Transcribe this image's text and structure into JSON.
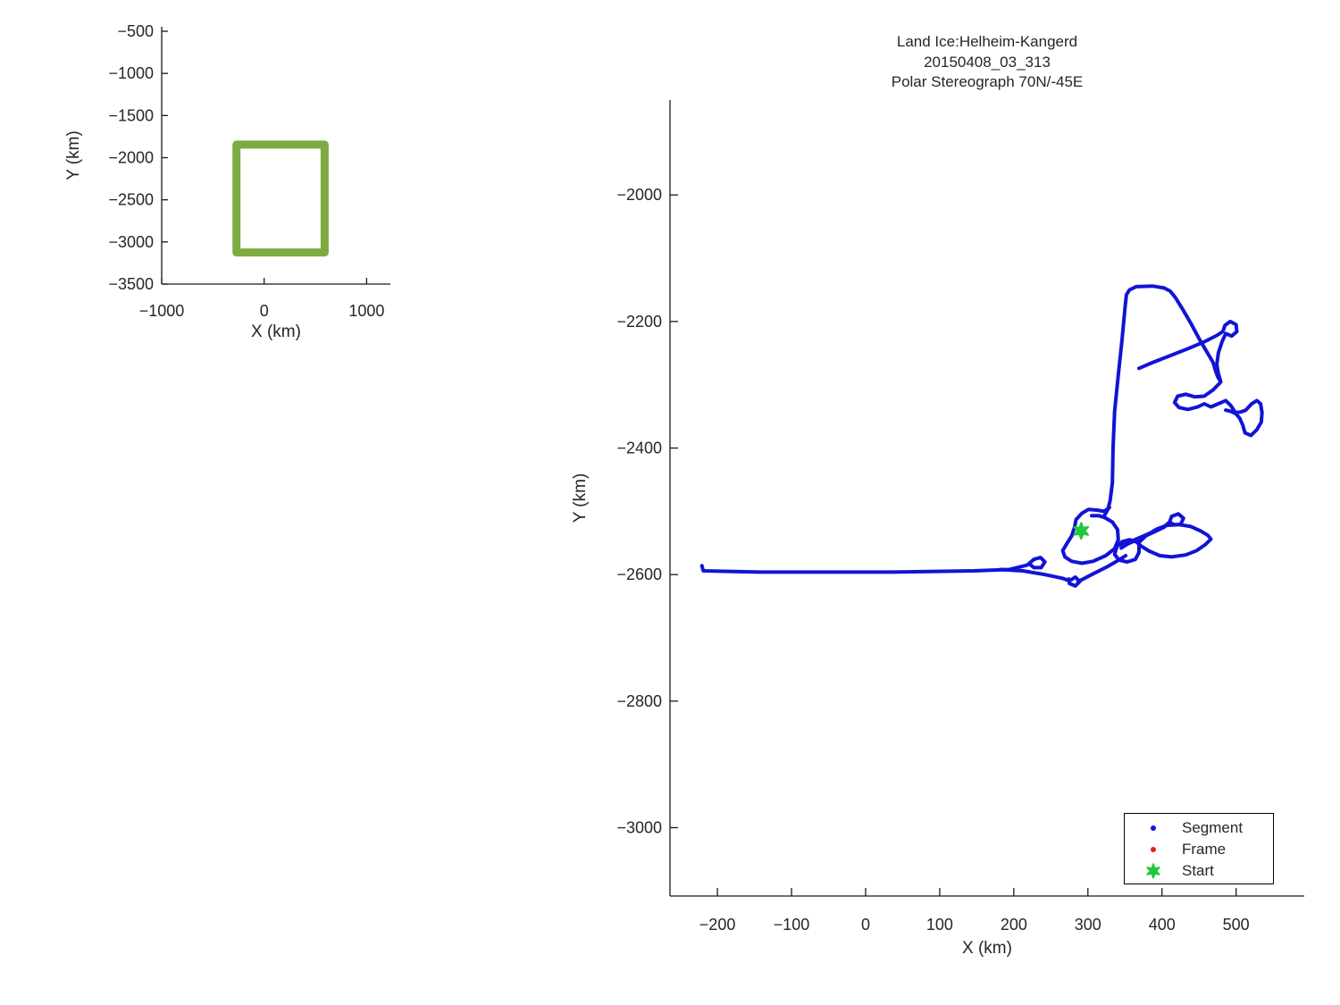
{
  "chart_data": [
    {
      "id": "overview-inset",
      "type": "line",
      "title": "",
      "xlabel": "X (km)",
      "ylabel": "Y (km)",
      "xlim": [
        -1000,
        1232
      ],
      "ylim": [
        -3500,
        -447
      ],
      "grid": false,
      "x_ticks": [
        {
          "v": -1000,
          "label": "−1000"
        },
        {
          "v": 0,
          "label": "0"
        },
        {
          "v": 1000,
          "label": "1000"
        }
      ],
      "y_ticks": [
        {
          "v": -500,
          "label": "−500"
        },
        {
          "v": -1000,
          "label": "−1000"
        },
        {
          "v": -1500,
          "label": "−1500"
        },
        {
          "v": -2000,
          "label": "−2000"
        },
        {
          "v": -2500,
          "label": "−2500"
        },
        {
          "v": -3000,
          "label": "−3000"
        },
        {
          "v": -3500,
          "label": "−3500"
        }
      ],
      "series": [
        {
          "name": "coverage-outline",
          "color": "#7dab40",
          "line_width": 9,
          "closed": true,
          "points": [
            [
              -270,
              -1845
            ],
            [
              590,
              -1845
            ],
            [
              590,
              -3125
            ],
            [
              -270,
              -3125
            ]
          ]
        }
      ]
    },
    {
      "id": "flight-track",
      "type": "line",
      "title_lines": [
        "Land Ice:Helheim-Kangerd",
        "20150408_03_313",
        "Polar Stereograph 70N/-45E"
      ],
      "xlabel": "X (km)",
      "ylabel": "Y (km)",
      "xlim": [
        -264,
        592
      ],
      "ylim": [
        -3108,
        -1850
      ],
      "grid": false,
      "x_ticks": [
        {
          "v": -200,
          "label": "−200"
        },
        {
          "v": -100,
          "label": "−100"
        },
        {
          "v": 0,
          "label": "0"
        },
        {
          "v": 100,
          "label": "100"
        },
        {
          "v": 200,
          "label": "200"
        },
        {
          "v": 300,
          "label": "300"
        },
        {
          "v": 400,
          "label": "400"
        },
        {
          "v": 500,
          "label": "500"
        }
      ],
      "y_ticks": [
        {
          "v": -2000,
          "label": "−2000"
        },
        {
          "v": -2200,
          "label": "−2200"
        },
        {
          "v": -2400,
          "label": "−2400"
        },
        {
          "v": -2600,
          "label": "−2600"
        },
        {
          "v": -2800,
          "label": "−2800"
        },
        {
          "v": -3000,
          "label": "−3000"
        }
      ],
      "legend": {
        "position": "southeast",
        "items": [
          "Segment",
          "Frame",
          "Start"
        ]
      },
      "series": [
        {
          "name": "Segment",
          "color": "#1213d6",
          "marker": "dot",
          "line_width": 4,
          "polylines": [
            [
              [
                -221,
                -2586
              ],
              [
                -219,
                -2594
              ],
              [
                -143,
                -2596
              ],
              [
                37,
                -2596
              ],
              [
                146,
                -2594
              ],
              [
                194,
                -2592
              ],
              [
                218,
                -2585
              ],
              [
                227,
                -2576
              ],
              [
                236,
                -2573
              ],
              [
                242,
                -2580
              ],
              [
                237,
                -2589
              ],
              [
                227,
                -2589
              ],
              [
                221,
                -2583
              ]
            ],
            [
              [
                182,
                -2592
              ],
              [
                212,
                -2594
              ],
              [
                242,
                -2600
              ],
              [
                266,
                -2606
              ],
              [
                275,
                -2610
              ],
              [
                283,
                -2604
              ],
              [
                289,
                -2611
              ],
              [
                283,
                -2618
              ],
              [
                275,
                -2614
              ],
              [
                274,
                -2607
              ]
            ],
            [
              [
                287,
                -2611
              ],
              [
                305,
                -2600
              ],
              [
                327,
                -2587
              ],
              [
                343,
                -2576
              ],
              [
                351,
                -2570
              ]
            ],
            [
              [
                322,
                -2507
              ],
              [
                327,
                -2497
              ],
              [
                330,
                -2483
              ],
              [
                333,
                -2455
              ],
              [
                334,
                -2398
              ],
              [
                336,
                -2342
              ],
              [
                341,
                -2285
              ],
              [
                346,
                -2229
              ],
              [
                350,
                -2179
              ],
              [
                352,
                -2158
              ],
              [
                356,
                -2150
              ],
              [
                365,
                -2145
              ],
              [
                387,
                -2144
              ],
              [
                403,
                -2147
              ],
              [
                411,
                -2152
              ],
              [
                418,
                -2162
              ],
              [
                428,
                -2181
              ],
              [
                439,
                -2203
              ],
              [
                451,
                -2229
              ],
              [
                462,
                -2251
              ],
              [
                469,
                -2265
              ],
              [
                472,
                -2277
              ],
              [
                475,
                -2287
              ],
              [
                479,
                -2295
              ]
            ],
            [
              [
                369,
                -2274
              ],
              [
                387,
                -2265
              ],
              [
                411,
                -2254
              ],
              [
                435,
                -2243
              ],
              [
                457,
                -2232
              ],
              [
                474,
                -2222
              ],
              [
                482,
                -2216
              ],
              [
                485,
                -2206
              ],
              [
                492,
                -2200
              ],
              [
                500,
                -2205
              ],
              [
                501,
                -2216
              ],
              [
                494,
                -2223
              ],
              [
                486,
                -2219
              ],
              [
                481,
                -2232
              ],
              [
                476,
                -2250
              ],
              [
                474,
                -2268
              ],
              [
                476,
                -2282
              ],
              [
                479,
                -2294
              ]
            ],
            [
              [
                479,
                -2296
              ],
              [
                469,
                -2308
              ],
              [
                457,
                -2318
              ],
              [
                444,
                -2319
              ],
              [
                432,
                -2315
              ],
              [
                421,
                -2318
              ],
              [
                417,
                -2328
              ],
              [
                423,
                -2336
              ],
              [
                435,
                -2339
              ],
              [
                448,
                -2335
              ],
              [
                457,
                -2330
              ],
              [
                466,
                -2335
              ],
              [
                476,
                -2330
              ],
              [
                486,
                -2325
              ],
              [
                493,
                -2333
              ],
              [
                499,
                -2344
              ],
              [
                506,
                -2343
              ],
              [
                513,
                -2340
              ],
              [
                521,
                -2330
              ],
              [
                528,
                -2325
              ],
              [
                533,
                -2330
              ],
              [
                535,
                -2344
              ],
              [
                534,
                -2359
              ],
              [
                528,
                -2371
              ],
              [
                520,
                -2380
              ],
              [
                512,
                -2376
              ],
              [
                509,
                -2364
              ],
              [
                505,
                -2353
              ],
              [
                500,
                -2346
              ],
              [
                493,
                -2342
              ],
              [
                486,
                -2340
              ]
            ],
            [
              [
                329,
                -2494
              ],
              [
                322,
                -2500
              ],
              [
                312,
                -2498
              ],
              [
                301,
                -2497
              ],
              [
                292,
                -2503
              ],
              [
                284,
                -2513
              ],
              [
                282,
                -2525
              ],
              [
                278,
                -2539
              ],
              [
                271,
                -2552
              ],
              [
                266,
                -2562
              ],
              [
                269,
                -2572
              ],
              [
                278,
                -2579
              ],
              [
                292,
                -2582
              ],
              [
                307,
                -2579
              ],
              [
                324,
                -2570
              ],
              [
                336,
                -2559
              ],
              [
                341,
                -2545
              ],
              [
                340,
                -2529
              ],
              [
                333,
                -2517
              ],
              [
                323,
                -2510
              ],
              [
                315,
                -2507
              ],
              [
                305,
                -2507
              ]
            ],
            [
              [
                345,
                -2553
              ],
              [
                363,
                -2545
              ],
              [
                381,
                -2536
              ],
              [
                399,
                -2527
              ],
              [
                410,
                -2518
              ],
              [
                413,
                -2508
              ],
              [
                422,
                -2504
              ],
              [
                429,
                -2511
              ],
              [
                425,
                -2521
              ],
              [
                416,
                -2521
              ],
              [
                410,
                -2517
              ],
              [
                403,
                -2525
              ],
              [
                385,
                -2535
              ],
              [
                366,
                -2545
              ],
              [
                353,
                -2552
              ],
              [
                345,
                -2558
              ]
            ],
            [
              [
                369,
                -2549
              ],
              [
                378,
                -2539
              ],
              [
                393,
                -2528
              ],
              [
                407,
                -2522
              ],
              [
                423,
                -2521
              ],
              [
                439,
                -2524
              ],
              [
                452,
                -2531
              ],
              [
                462,
                -2538
              ],
              [
                466,
                -2544
              ],
              [
                459,
                -2552
              ],
              [
                447,
                -2562
              ],
              [
                432,
                -2569
              ],
              [
                413,
                -2572
              ],
              [
                397,
                -2570
              ],
              [
                383,
                -2563
              ],
              [
                372,
                -2555
              ],
              [
                365,
                -2548
              ],
              [
                356,
                -2545
              ],
              [
                346,
                -2548
              ],
              [
                339,
                -2556
              ],
              [
                336,
                -2568
              ],
              [
                342,
                -2577
              ],
              [
                353,
                -2580
              ],
              [
                364,
                -2576
              ],
              [
                369,
                -2565
              ],
              [
                369,
                -2552
              ]
            ]
          ]
        },
        {
          "name": "Frame",
          "color": "#e02020",
          "marker": "dot",
          "line_width": 4,
          "polylines": []
        },
        {
          "name": "Start",
          "color": "#1fc93a",
          "marker": "star",
          "marker_size": 9,
          "points": [
            [
              291,
              -2531
            ]
          ]
        }
      ]
    }
  ]
}
